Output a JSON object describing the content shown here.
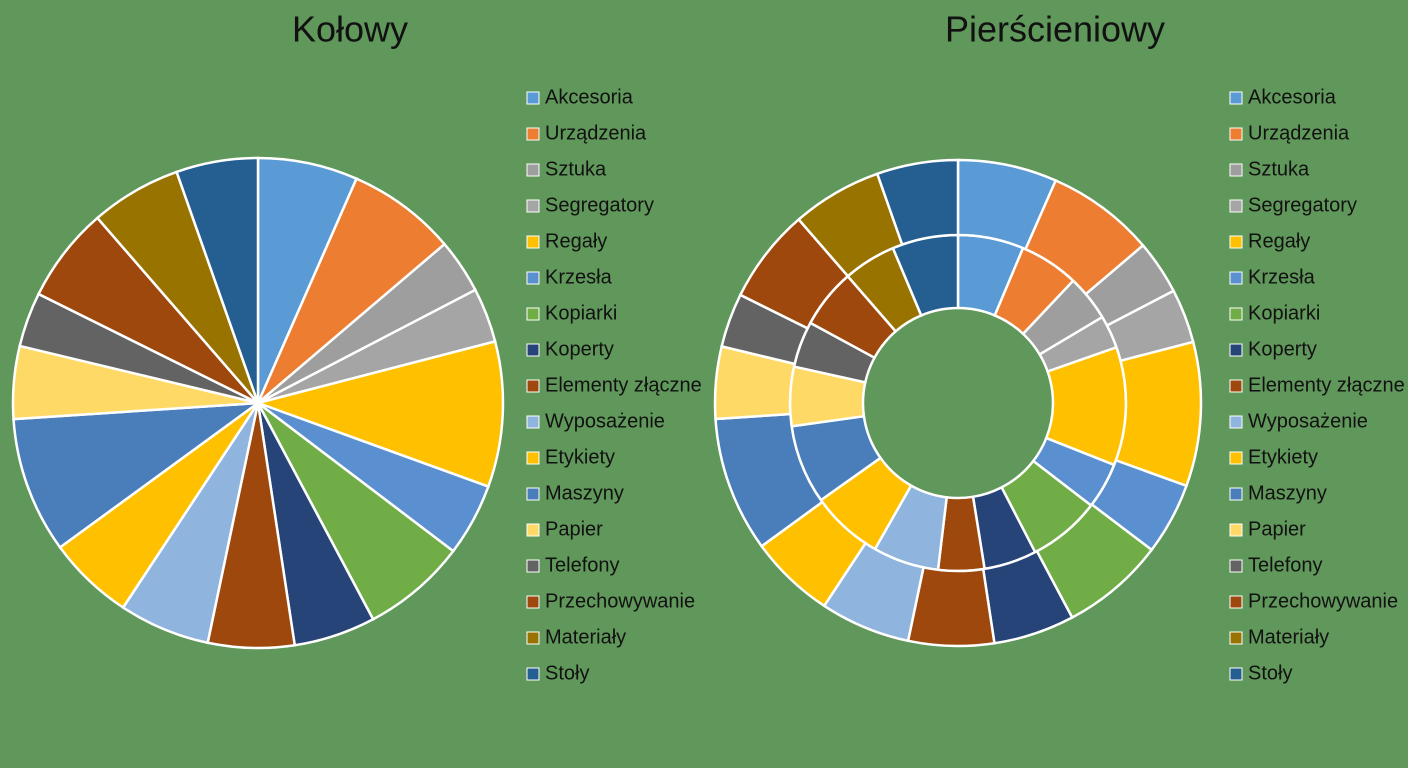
{
  "chart_data": [
    {
      "type": "pie",
      "title": "Kołowy",
      "categories": [
        "Akcesoria",
        "Urządzenia",
        "Sztuka",
        "Segregatory",
        "Regały",
        "Krzesła",
        "Kopiarki",
        "Koperty",
        "Elementy złączne",
        "Wyposażenie",
        "Etykiety",
        "Maszyny",
        "Papier",
        "Telefony",
        "Przechowywanie",
        "Materiały",
        "Stoły"
      ],
      "colors": [
        "#5B9BD5",
        "#ED7D31",
        "#9E9E9E",
        "#A5A5A5",
        "#FFC000",
        "#5A8FD0",
        "#70AD47",
        "#264478",
        "#9E480E",
        "#8FB4DE",
        "#FFC000",
        "#4A7EBB",
        "#FFD966",
        "#636363",
        "#9E480E",
        "#997300",
        "#255E91"
      ],
      "series": [
        {
          "values": [
            22,
            24,
            12,
            12,
            32,
            16,
            23,
            18,
            19,
            20,
            19,
            30,
            16,
            12,
            21,
            20,
            18
          ]
        }
      ]
    },
    {
      "type": "donut",
      "title": "Pierścieniowy",
      "categories": [
        "Akcesoria",
        "Urządzenia",
        "Sztuka",
        "Segregatory",
        "Regały",
        "Krzesła",
        "Kopiarki",
        "Koperty",
        "Elementy złączne",
        "Wyposażenie",
        "Etykiety",
        "Maszyny",
        "Papier",
        "Telefony",
        "Przechowywanie",
        "Materiały",
        "Stoły"
      ],
      "colors": [
        "#5B9BD5",
        "#ED7D31",
        "#9E9E9E",
        "#A5A5A5",
        "#FFC000",
        "#5A8FD0",
        "#70AD47",
        "#264478",
        "#9E480E",
        "#8FB4DE",
        "#FFC000",
        "#4A7EBB",
        "#FFD966",
        "#636363",
        "#9E480E",
        "#997300",
        "#255E91"
      ],
      "series": [
        {
          "values": [
            20,
            18,
            14,
            10,
            36,
            14,
            22,
            16,
            14,
            20,
            22,
            24,
            18,
            14,
            18,
            16,
            20
          ]
        },
        {
          "values": [
            22,
            24,
            12,
            12,
            32,
            16,
            23,
            18,
            19,
            20,
            19,
            30,
            16,
            12,
            21,
            20,
            18
          ]
        }
      ]
    }
  ]
}
